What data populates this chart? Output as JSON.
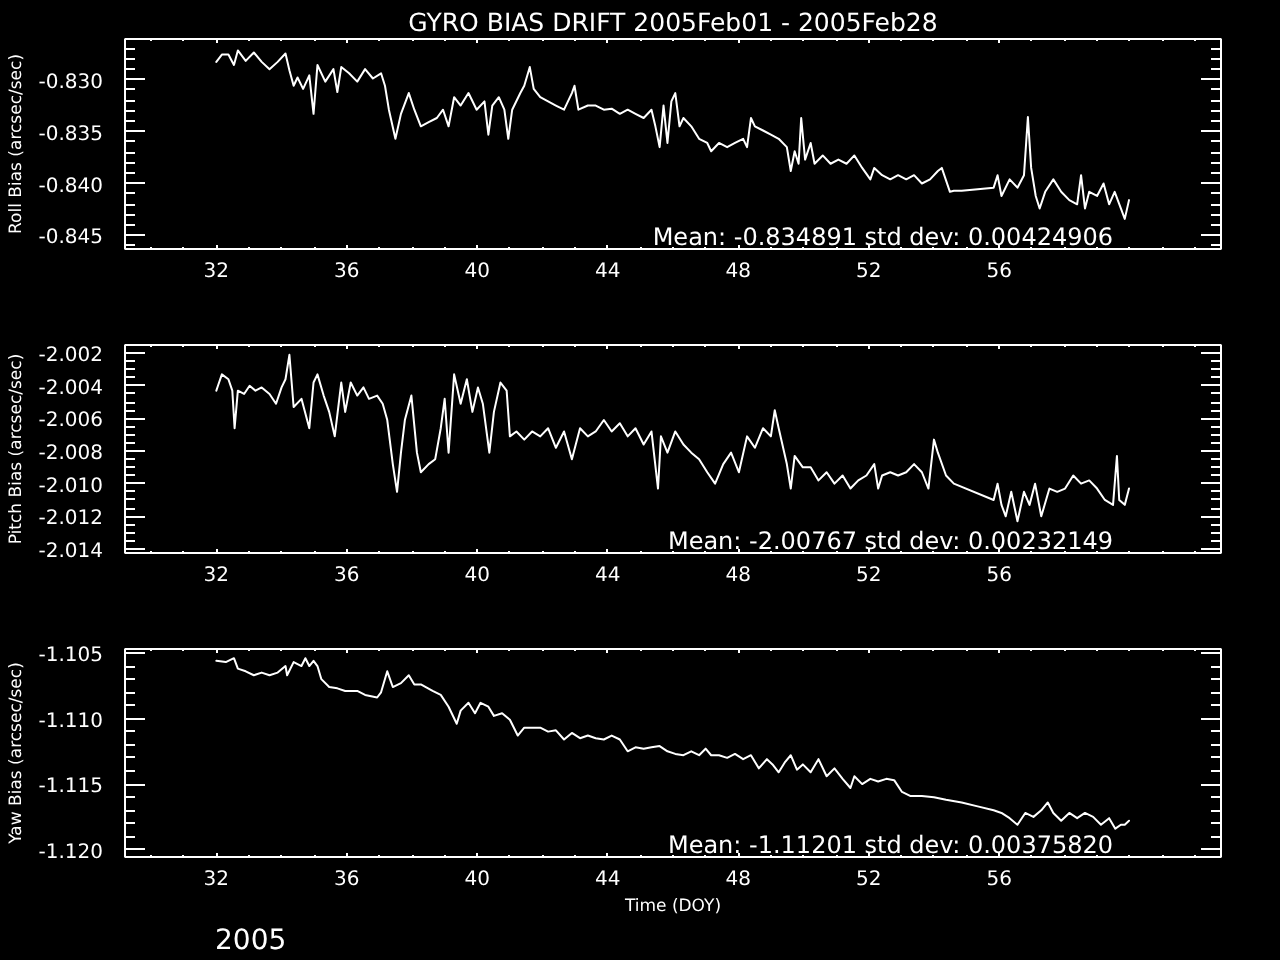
{
  "chart_data": [
    {
      "type": "line",
      "title": "GYRO BIAS DRIFT 2005Feb01 - 2005Feb28",
      "ylabel": "Roll Bias (arcsec/sec)",
      "xlim": [
        29.2,
        62.8
      ],
      "xticks": [
        32,
        36,
        40,
        44,
        48,
        52,
        56
      ],
      "ylim": [
        -0.8463,
        -0.8261
      ],
      "yticks": [
        {
          "value": -0.845,
          "label": "-0.845"
        },
        {
          "value": -0.84,
          "label": "-0.840"
        },
        {
          "value": -0.835,
          "label": "-0.835"
        },
        {
          "value": -0.83,
          "label": "-0.830"
        }
      ],
      "x": [
        32.0,
        32.17,
        32.37,
        32.54,
        32.66,
        32.9,
        33.15,
        33.39,
        33.63,
        33.88,
        34.12,
        34.24,
        34.37,
        34.49,
        34.66,
        34.85,
        34.98,
        35.1,
        35.34,
        35.59,
        35.71,
        35.83,
        36.07,
        36.32,
        36.56,
        36.8,
        37.05,
        37.17,
        37.29,
        37.49,
        37.66,
        37.9,
        38.07,
        38.27,
        38.51,
        38.76,
        38.95,
        39.12,
        39.29,
        39.49,
        39.73,
        39.98,
        40.22,
        40.34,
        40.46,
        40.66,
        40.83,
        40.95,
        41.07,
        41.32,
        41.44,
        41.61,
        41.73,
        41.93,
        42.17,
        42.41,
        42.66,
        42.9,
        42.98,
        43.1,
        43.39,
        43.63,
        43.88,
        44.12,
        44.37,
        44.61,
        44.85,
        45.1,
        45.34,
        45.46,
        45.59,
        45.71,
        45.83,
        45.95,
        46.07,
        46.2,
        46.32,
        46.56,
        46.8,
        47.05,
        47.17,
        47.41,
        47.66,
        47.9,
        48.15,
        48.27,
        48.39,
        48.51,
        48.76,
        49.0,
        49.24,
        49.49,
        49.61,
        49.73,
        49.85,
        49.93,
        50.05,
        50.22,
        50.34,
        50.59,
        50.83,
        51.07,
        51.32,
        51.56,
        51.8,
        52.05,
        52.17,
        52.41,
        52.66,
        52.9,
        53.15,
        53.39,
        53.63,
        53.88,
        54.12,
        54.24,
        54.49,
        54.61,
        54.85,
        55.83,
        55.95,
        56.07,
        56.32,
        56.56,
        56.76,
        56.88,
        56.98,
        57.12,
        57.24,
        57.41,
        57.66,
        57.9,
        58.15,
        58.39,
        58.51,
        58.63,
        58.76,
        59.0,
        59.2,
        59.37,
        59.54,
        59.73,
        59.85,
        59.98
      ],
      "series": [
        {
          "color": "#ffffff",
          "values": [
            -0.8283,
            -0.8276,
            -0.8276,
            -0.8286,
            -0.8272,
            -0.8282,
            -0.8274,
            -0.8283,
            -0.829,
            -0.8283,
            -0.8275,
            -0.8291,
            -0.8306,
            -0.8298,
            -0.8309,
            -0.8296,
            -0.8333,
            -0.8286,
            -0.8302,
            -0.829,
            -0.8312,
            -0.8288,
            -0.8294,
            -0.8302,
            -0.829,
            -0.8299,
            -0.8294,
            -0.8306,
            -0.8329,
            -0.8357,
            -0.8333,
            -0.8313,
            -0.8329,
            -0.8345,
            -0.8341,
            -0.8337,
            -0.8329,
            -0.8345,
            -0.8317,
            -0.8325,
            -0.8313,
            -0.8329,
            -0.8321,
            -0.8353,
            -0.8325,
            -0.8317,
            -0.8329,
            -0.8357,
            -0.8329,
            -0.8313,
            -0.8306,
            -0.8288,
            -0.8309,
            -0.8317,
            -0.8321,
            -0.8325,
            -0.8329,
            -0.8313,
            -0.8306,
            -0.8329,
            -0.8325,
            -0.8325,
            -0.8329,
            -0.8328,
            -0.8333,
            -0.8329,
            -0.8333,
            -0.8337,
            -0.8329,
            -0.8345,
            -0.8365,
            -0.8325,
            -0.8361,
            -0.8321,
            -0.8313,
            -0.8345,
            -0.8337,
            -0.8345,
            -0.8357,
            -0.8361,
            -0.8369,
            -0.8361,
            -0.8365,
            -0.8361,
            -0.8357,
            -0.8365,
            -0.8337,
            -0.8345,
            -0.8349,
            -0.8353,
            -0.8357,
            -0.8365,
            -0.8388,
            -0.8369,
            -0.8381,
            -0.8337,
            -0.8377,
            -0.8361,
            -0.8381,
            -0.8373,
            -0.8381,
            -0.8377,
            -0.8381,
            -0.8373,
            -0.8385,
            -0.8396,
            -0.8385,
            -0.8392,
            -0.8396,
            -0.8392,
            -0.8396,
            -0.8392,
            -0.84,
            -0.8396,
            -0.8388,
            -0.8385,
            -0.8408,
            -0.8407,
            -0.8407,
            -0.8404,
            -0.8392,
            -0.8412,
            -0.8396,
            -0.8404,
            -0.8392,
            -0.8336,
            -0.8385,
            -0.8412,
            -0.8424,
            -0.8408,
            -0.8396,
            -0.8408,
            -0.8416,
            -0.842,
            -0.8392,
            -0.8424,
            -0.8408,
            -0.8412,
            -0.84,
            -0.842,
            -0.8408,
            -0.8424,
            -0.8434,
            -0.8416
          ]
        }
      ],
      "annotations": [
        "Mean: -0.834891 std dev: 0.00424906"
      ]
    },
    {
      "type": "line",
      "ylabel": "Pitch Bias (arcsec/sec)",
      "xlim": [
        29.2,
        62.8
      ],
      "xticks": [
        32,
        36,
        40,
        44,
        48,
        52,
        56
      ],
      "ylim": [
        -2.01425,
        -2.0015
      ],
      "yticks": [
        -2.014,
        -2.012,
        {
          "value": -2.01,
          "label": "-2.010"
        },
        -2.008,
        -2.006,
        -2.004,
        -2.002
      ],
      "x": [
        32.0,
        32.05,
        32.17,
        32.37,
        32.49,
        32.56,
        32.66,
        32.85,
        33.02,
        33.2,
        33.39,
        33.63,
        33.83,
        34.0,
        34.12,
        34.24,
        34.37,
        34.61,
        34.85,
        34.98,
        35.1,
        35.29,
        35.46,
        35.63,
        35.83,
        35.95,
        36.12,
        36.32,
        36.51,
        36.68,
        36.93,
        37.1,
        37.24,
        37.41,
        37.54,
        37.66,
        37.78,
        37.98,
        38.15,
        38.27,
        38.51,
        38.71,
        38.88,
        39.0,
        39.12,
        39.29,
        39.49,
        39.68,
        39.85,
        40.02,
        40.17,
        40.37,
        40.51,
        40.71,
        40.9,
        41.0,
        41.2,
        41.44,
        41.68,
        41.93,
        42.17,
        42.41,
        42.66,
        42.9,
        43.15,
        43.39,
        43.63,
        43.88,
        44.12,
        44.37,
        44.61,
        44.85,
        45.1,
        45.34,
        45.54,
        45.63,
        45.83,
        46.07,
        46.32,
        46.56,
        46.8,
        47.05,
        47.29,
        47.54,
        47.78,
        48.02,
        48.27,
        48.51,
        48.76,
        49.0,
        49.12,
        49.24,
        49.49,
        49.61,
        49.73,
        49.98,
        50.22,
        50.46,
        50.71,
        50.95,
        51.2,
        51.44,
        51.68,
        51.93,
        52.17,
        52.29,
        52.41,
        52.66,
        52.9,
        53.15,
        53.39,
        53.63,
        53.83,
        54.0,
        54.12,
        54.37,
        54.61,
        55.83,
        55.95,
        56.07,
        56.2,
        56.37,
        56.56,
        56.76,
        56.93,
        57.1,
        57.29,
        57.54,
        57.78,
        58.02,
        58.27,
        58.51,
        58.76,
        59.0,
        59.24,
        59.49,
        59.61,
        59.68,
        59.85,
        59.98
      ],
      "series": [
        {
          "color": "#ffffff",
          "values": [
            -2.0043,
            -2.004,
            -2.0033,
            -2.0036,
            -2.0043,
            -2.0066,
            -2.0043,
            -2.0045,
            -2.004,
            -2.0043,
            -2.0041,
            -2.0045,
            -2.0051,
            -2.0041,
            -2.0036,
            -2.0021,
            -2.0053,
            -2.0048,
            -2.0066,
            -2.0038,
            -2.0033,
            -2.0046,
            -2.0056,
            -2.0071,
            -2.0038,
            -2.0056,
            -2.0038,
            -2.0046,
            -2.0041,
            -2.0048,
            -2.0046,
            -2.0051,
            -2.0061,
            -2.0088,
            -2.0105,
            -2.0081,
            -2.0061,
            -2.0046,
            -2.0081,
            -2.0093,
            -2.0088,
            -2.0085,
            -2.0066,
            -2.0048,
            -2.0081,
            -2.0033,
            -2.0051,
            -2.0036,
            -2.0056,
            -2.0041,
            -2.0051,
            -2.0081,
            -2.0056,
            -2.0038,
            -2.0043,
            -2.0071,
            -2.0068,
            -2.0073,
            -2.0068,
            -2.0071,
            -2.0066,
            -2.0078,
            -2.0068,
            -2.0085,
            -2.0066,
            -2.0071,
            -2.0068,
            -2.0061,
            -2.0068,
            -2.0063,
            -2.0071,
            -2.0066,
            -2.0076,
            -2.0068,
            -2.0103,
            -2.0071,
            -2.0081,
            -2.0068,
            -2.0076,
            -2.0081,
            -2.0085,
            -2.0093,
            -2.01,
            -2.0088,
            -2.0081,
            -2.0093,
            -2.0071,
            -2.0078,
            -2.0066,
            -2.0071,
            -2.0055,
            -2.0066,
            -2.0088,
            -2.0103,
            -2.0083,
            -2.009,
            -2.009,
            -2.0098,
            -2.0093,
            -2.01,
            -2.0095,
            -2.0103,
            -2.0098,
            -2.0095,
            -2.0088,
            -2.0103,
            -2.0095,
            -2.0093,
            -2.0095,
            -2.0093,
            -2.0088,
            -2.0093,
            -2.0103,
            -2.0073,
            -2.0081,
            -2.0095,
            -2.01,
            -2.011,
            -2.01,
            -2.0113,
            -2.012,
            -2.0105,
            -2.0123,
            -2.0105,
            -2.0113,
            -2.01,
            -2.012,
            -2.0103,
            -2.0105,
            -2.0103,
            -2.0095,
            -2.01,
            -2.0098,
            -2.0103,
            -2.011,
            -2.0113,
            -2.0083,
            -2.011,
            -2.0113,
            -2.0103
          ]
        }
      ],
      "annotations": [
        "Mean: -2.00767 std dev: 0.00232149"
      ]
    },
    {
      "type": "line",
      "ylabel": "Yaw Bias (arcsec/sec)",
      "xlabel": "Time (DOY)",
      "xlim": [
        29.2,
        62.8
      ],
      "xticks": [
        32,
        36,
        40,
        44,
        48,
        52,
        56
      ],
      "ylim": [
        -1.12056,
        -1.1047
      ],
      "yticks": [
        {
          "value": -1.12,
          "label": "-1.120"
        },
        -1.115,
        {
          "value": -1.11,
          "label": "-1.110"
        },
        -1.105
      ],
      "x": [
        32.0,
        32.29,
        32.54,
        32.66,
        32.9,
        33.15,
        33.39,
        33.63,
        33.88,
        34.12,
        34.17,
        34.37,
        34.61,
        34.73,
        34.85,
        34.98,
        35.1,
        35.22,
        35.46,
        35.71,
        35.95,
        36.32,
        36.56,
        36.93,
        37.05,
        37.24,
        37.41,
        37.66,
        37.9,
        38.07,
        38.27,
        38.63,
        38.88,
        39.12,
        39.37,
        39.49,
        39.73,
        39.93,
        40.1,
        40.34,
        40.51,
        40.76,
        41.0,
        41.24,
        41.44,
        41.68,
        41.93,
        42.17,
        42.41,
        42.66,
        42.9,
        43.15,
        43.39,
        43.63,
        43.88,
        44.12,
        44.37,
        44.61,
        44.85,
        45.1,
        45.34,
        45.59,
        45.83,
        46.07,
        46.32,
        46.56,
        46.8,
        47.0,
        47.17,
        47.41,
        47.66,
        47.9,
        48.15,
        48.39,
        48.63,
        48.88,
        49.05,
        49.24,
        49.44,
        49.61,
        49.8,
        49.98,
        50.22,
        50.46,
        50.71,
        50.95,
        51.2,
        51.44,
        51.56,
        51.8,
        52.05,
        52.29,
        52.54,
        52.78,
        53.02,
        53.27,
        53.63,
        54.0,
        54.37,
        54.85,
        55.34,
        55.83,
        56.07,
        56.32,
        56.56,
        56.8,
        57.05,
        57.29,
        57.49,
        57.66,
        57.9,
        58.15,
        58.39,
        58.63,
        58.88,
        59.12,
        59.37,
        59.56,
        59.73,
        59.85,
        59.98
      ],
      "series": [
        {
          "color": "#ffffff",
          "values": [
            -1.1056,
            -1.1057,
            -1.1054,
            -1.1062,
            -1.1064,
            -1.1067,
            -1.1065,
            -1.1067,
            -1.1065,
            -1.106,
            -1.1067,
            -1.1057,
            -1.106,
            -1.1054,
            -1.106,
            -1.1056,
            -1.106,
            -1.107,
            -1.1076,
            -1.1077,
            -1.1079,
            -1.1079,
            -1.1082,
            -1.1084,
            -1.108,
            -1.1064,
            -1.1076,
            -1.1073,
            -1.1067,
            -1.1074,
            -1.1074,
            -1.1079,
            -1.1082,
            -1.1091,
            -1.1104,
            -1.1094,
            -1.1088,
            -1.1096,
            -1.1088,
            -1.1091,
            -1.1098,
            -1.1096,
            -1.1101,
            -1.1113,
            -1.1107,
            -1.1107,
            -1.1107,
            -1.111,
            -1.1109,
            -1.1116,
            -1.1111,
            -1.1115,
            -1.1113,
            -1.1115,
            -1.1116,
            -1.1113,
            -1.1116,
            -1.1125,
            -1.1122,
            -1.1123,
            -1.1122,
            -1.1121,
            -1.1125,
            -1.1127,
            -1.1128,
            -1.1125,
            -1.1128,
            -1.1123,
            -1.1128,
            -1.1128,
            -1.113,
            -1.1127,
            -1.1131,
            -1.1128,
            -1.1138,
            -1.1131,
            -1.1135,
            -1.1141,
            -1.1133,
            -1.1128,
            -1.1139,
            -1.1135,
            -1.1141,
            -1.1131,
            -1.1144,
            -1.1138,
            -1.1146,
            -1.1153,
            -1.1144,
            -1.115,
            -1.1146,
            -1.1148,
            -1.1146,
            -1.1147,
            -1.1156,
            -1.1159,
            -1.1159,
            -1.116,
            -1.1162,
            -1.1164,
            -1.1167,
            -1.117,
            -1.1172,
            -1.1176,
            -1.1181,
            -1.1172,
            -1.1175,
            -1.117,
            -1.1164,
            -1.1172,
            -1.1178,
            -1.1172,
            -1.1176,
            -1.1172,
            -1.1175,
            -1.1181,
            -1.1176,
            -1.1184,
            -1.1181,
            -1.1181,
            -1.1178
          ]
        }
      ],
      "annotations": [
        "Mean: -1.11201 std dev: 0.00375820",
        "2005"
      ]
    }
  ]
}
